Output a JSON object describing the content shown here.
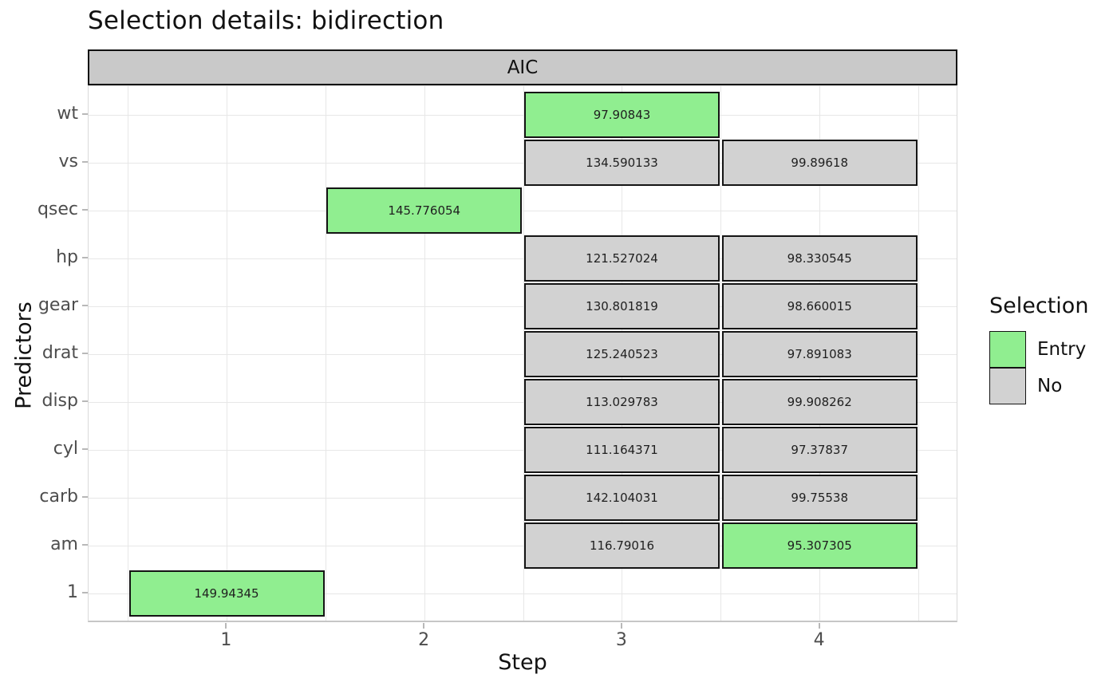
{
  "chart_data": {
    "type": "heatmap",
    "title": "Selection details: bidirection",
    "facet_label": "AIC",
    "xlabel": "Step",
    "ylabel": "Predictors",
    "x_ticks": [
      "1",
      "2",
      "3",
      "4"
    ],
    "x_range": [
      0.3,
      4.7
    ],
    "y_categories_top_to_bottom": [
      "wt",
      "vs",
      "qsec",
      "hp",
      "gear",
      "drat",
      "disp",
      "cyl",
      "carb",
      "am",
      "1"
    ],
    "grid": true,
    "legend": {
      "title": "Selection",
      "position": "right",
      "entries": [
        {
          "label": "Entry",
          "selection": "Entry",
          "color": "#90EE90"
        },
        {
          "label": "No",
          "selection": "No",
          "color": "#D2D2D2"
        }
      ]
    },
    "colors": {
      "entry_fill": "#90EE90",
      "no_fill": "#D2D2D2",
      "tile_border": "#141414",
      "strip_fill": "#C9C9C9"
    },
    "tiles": [
      {
        "predictor": "wt",
        "step": 3,
        "value": "97.90843",
        "selection": "Entry"
      },
      {
        "predictor": "vs",
        "step": 3,
        "value": "134.590133",
        "selection": "No"
      },
      {
        "predictor": "vs",
        "step": 4,
        "value": "99.89618",
        "selection": "No"
      },
      {
        "predictor": "qsec",
        "step": 2,
        "value": "145.776054",
        "selection": "Entry"
      },
      {
        "predictor": "hp",
        "step": 3,
        "value": "121.527024",
        "selection": "No"
      },
      {
        "predictor": "hp",
        "step": 4,
        "value": "98.330545",
        "selection": "No"
      },
      {
        "predictor": "gear",
        "step": 3,
        "value": "130.801819",
        "selection": "No"
      },
      {
        "predictor": "gear",
        "step": 4,
        "value": "98.660015",
        "selection": "No"
      },
      {
        "predictor": "drat",
        "step": 3,
        "value": "125.240523",
        "selection": "No"
      },
      {
        "predictor": "drat",
        "step": 4,
        "value": "97.891083",
        "selection": "No"
      },
      {
        "predictor": "disp",
        "step": 3,
        "value": "113.029783",
        "selection": "No"
      },
      {
        "predictor": "disp",
        "step": 4,
        "value": "99.908262",
        "selection": "No"
      },
      {
        "predictor": "cyl",
        "step": 3,
        "value": "111.164371",
        "selection": "No"
      },
      {
        "predictor": "cyl",
        "step": 4,
        "value": "97.37837",
        "selection": "No"
      },
      {
        "predictor": "carb",
        "step": 3,
        "value": "142.104031",
        "selection": "No"
      },
      {
        "predictor": "carb",
        "step": 4,
        "value": "99.75538",
        "selection": "No"
      },
      {
        "predictor": "am",
        "step": 3,
        "value": "116.79016",
        "selection": "No"
      },
      {
        "predictor": "am",
        "step": 4,
        "value": "95.307305",
        "selection": "Entry"
      },
      {
        "predictor": "1",
        "step": 1,
        "value": "149.94345",
        "selection": "Entry"
      }
    ]
  }
}
